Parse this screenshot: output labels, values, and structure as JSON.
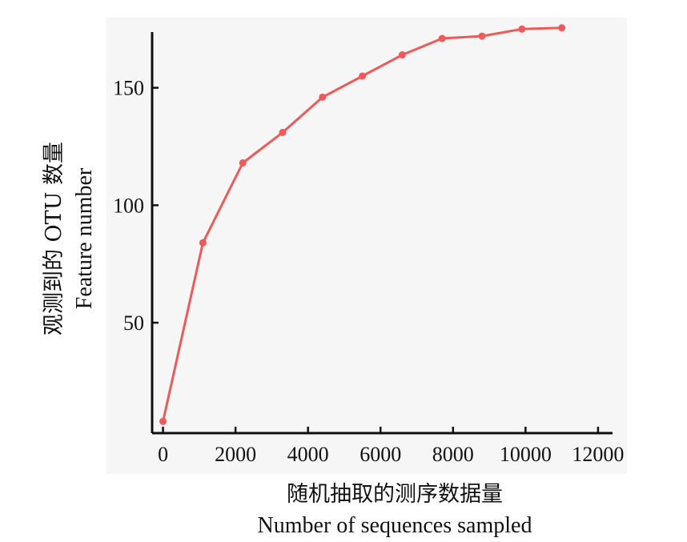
{
  "chart_data": {
    "type": "line",
    "title": "",
    "xlabel_cn": "随机抽取的测序数据量",
    "xlabel_en": "Number of sequences sampled",
    "ylabel_cn": "观测到的 OTU 数量",
    "ylabel_en": "Feature number",
    "xlim": [
      -300,
      12400
    ],
    "ylim": [
      3,
      186
    ],
    "xticks": [
      0,
      2000,
      4000,
      6000,
      8000,
      10000,
      12000
    ],
    "yticks": [
      50,
      100,
      150
    ],
    "grid": false,
    "series": [
      {
        "color": "#ee5a5a",
        "x": [
          0,
          1100,
          2200,
          3300,
          4400,
          5500,
          6600,
          7700,
          8800,
          9900,
          11000
        ],
        "y": [
          8,
          84,
          118,
          131,
          146,
          155,
          164,
          171,
          172,
          175,
          175.5
        ]
      }
    ]
  }
}
